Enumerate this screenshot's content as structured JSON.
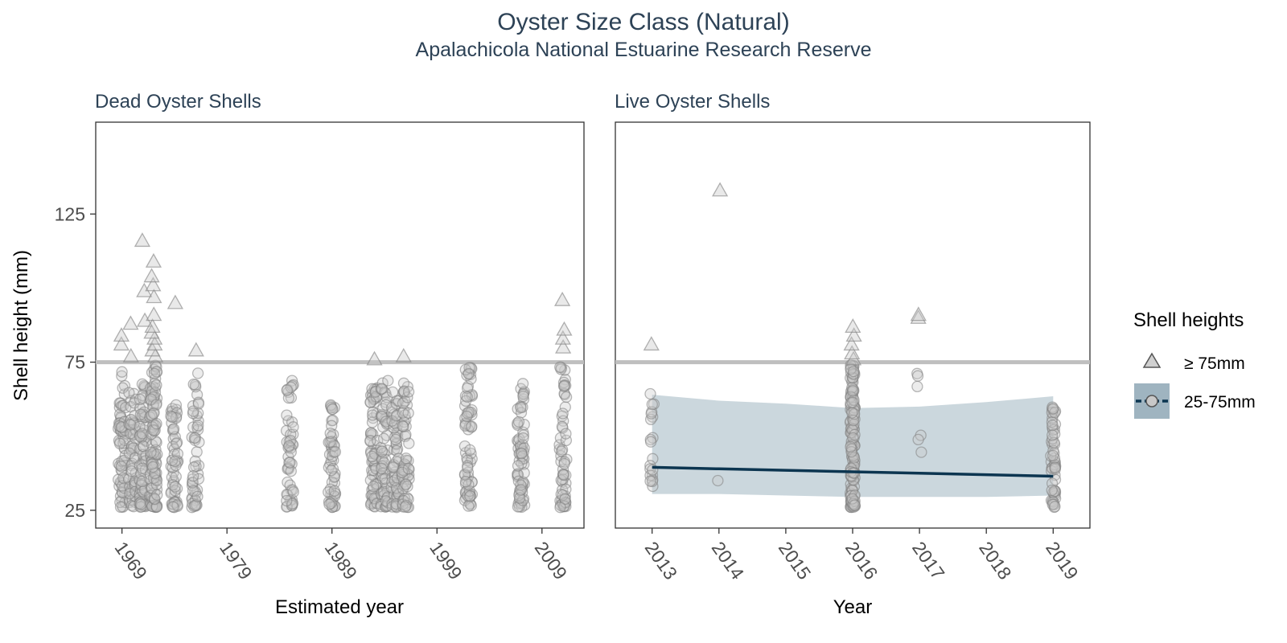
{
  "title": "Oyster Size Class (Natural)",
  "subtitle": "Apalachicola National Estuarine Research Reserve",
  "colors": {
    "point_fill": "#c8c8c8",
    "point_stroke": "#7f7f7f",
    "reference_line": "#bfbfbf",
    "trend_line": "#0c3550",
    "ribbon": "#a9bcc6",
    "title_text": "#2d4256"
  },
  "legend": {
    "title": "Shell heights",
    "placement": "right",
    "items": [
      {
        "label": "≥ 75mm",
        "shape": "triangle"
      },
      {
        "label": "25-75mm",
        "shape": "circle-with-trend-line"
      }
    ]
  },
  "y_axis": {
    "label": "Shell height (mm)",
    "ticks": [
      "25",
      "75",
      "125"
    ]
  },
  "chart_data": [
    {
      "type": "scatter",
      "panel": "Dead Oyster Shells",
      "xlabel": "Estimated year",
      "ylabel": "Shell height (mm)",
      "xlim": [
        1966.5,
        2013
      ],
      "ylim": [
        19,
        156
      ],
      "xticks": [
        "1969",
        "1979",
        "1989",
        "1999",
        "2009"
      ],
      "yticks": [
        25,
        75,
        125
      ],
      "reference_line": 75,
      "grid": false,
      "groups": [
        {
          "x": 1969,
          "min": 26,
          "max": 72,
          "count": 70,
          "large": [
            81,
            84
          ]
        },
        {
          "x": 1970,
          "min": 26,
          "max": 66,
          "count": 60,
          "large": [
            77,
            88
          ]
        },
        {
          "x": 1971,
          "min": 26,
          "max": 68,
          "count": 70,
          "large": [
            89,
            99,
            116
          ]
        },
        {
          "x": 1972,
          "min": 26,
          "max": 74,
          "count": 110,
          "large": [
            77,
            79,
            81,
            83,
            85,
            87,
            91,
            97,
            101,
            104,
            109
          ]
        },
        {
          "x": 1974,
          "min": 26,
          "max": 62,
          "count": 55,
          "large": [
            95
          ]
        },
        {
          "x": 1976,
          "min": 26,
          "max": 74,
          "count": 50,
          "large": [
            79
          ]
        },
        {
          "x": 1985,
          "min": 26,
          "max": 69,
          "count": 50,
          "large": []
        },
        {
          "x": 1989,
          "min": 26,
          "max": 64,
          "count": 55,
          "large": []
        },
        {
          "x": 1993,
          "min": 26,
          "max": 68,
          "count": 70,
          "large": [
            76
          ]
        },
        {
          "x": 1994,
          "min": 26,
          "max": 69,
          "count": 65,
          "large": []
        },
        {
          "x": 1995,
          "min": 26,
          "max": 67,
          "count": 60,
          "large": []
        },
        {
          "x": 1996,
          "min": 26,
          "max": 73,
          "count": 60,
          "large": [
            77
          ]
        },
        {
          "x": 2002,
          "min": 26,
          "max": 75,
          "count": 70,
          "large": []
        },
        {
          "x": 2007,
          "min": 26,
          "max": 69,
          "count": 70,
          "large": []
        },
        {
          "x": 2011,
          "min": 26,
          "max": 74,
          "count": 60,
          "large": [
            80,
            83,
            86,
            96
          ]
        }
      ]
    },
    {
      "type": "scatter",
      "panel": "Live Oyster Shells",
      "xlabel": "Year",
      "ylabel": "Shell height (mm)",
      "xlim": [
        2012.45,
        2019.55
      ],
      "ylim": [
        19,
        156
      ],
      "xticks": [
        "2013",
        "2014",
        "2015",
        "2016",
        "2017",
        "2018",
        "2019"
      ],
      "yticks": [
        25,
        75,
        125
      ],
      "reference_line": 75,
      "grid": false,
      "groups": [
        {
          "x": 2013,
          "min": 33,
          "max": 69,
          "count": 20,
          "large": [
            81
          ]
        },
        {
          "x": 2014,
          "min": 35,
          "max": 35,
          "count": 1,
          "large": [
            133
          ]
        },
        {
          "x": 2016,
          "min": 26,
          "max": 74,
          "count": 150,
          "large": [
            76,
            78,
            81,
            84,
            87
          ]
        },
        {
          "x": 2017,
          "min": 43,
          "max": 72,
          "count": 6,
          "large": [
            90,
            91
          ]
        },
        {
          "x": 2019,
          "min": 26,
          "max": 60,
          "count": 60,
          "large": []
        }
      ],
      "trend": {
        "x": [
          2013,
          2014,
          2015,
          2016,
          2017,
          2018,
          2019
        ],
        "y": [
          39.5,
          39.0,
          38.5,
          38.0,
          37.5,
          37.0,
          36.5
        ],
        "ribbon_upper": [
          64,
          62,
          61,
          59.5,
          60,
          61.5,
          63.5
        ],
        "ribbon_lower": [
          30.5,
          30.5,
          30,
          29.5,
          29.5,
          29.5,
          30
        ]
      }
    }
  ]
}
